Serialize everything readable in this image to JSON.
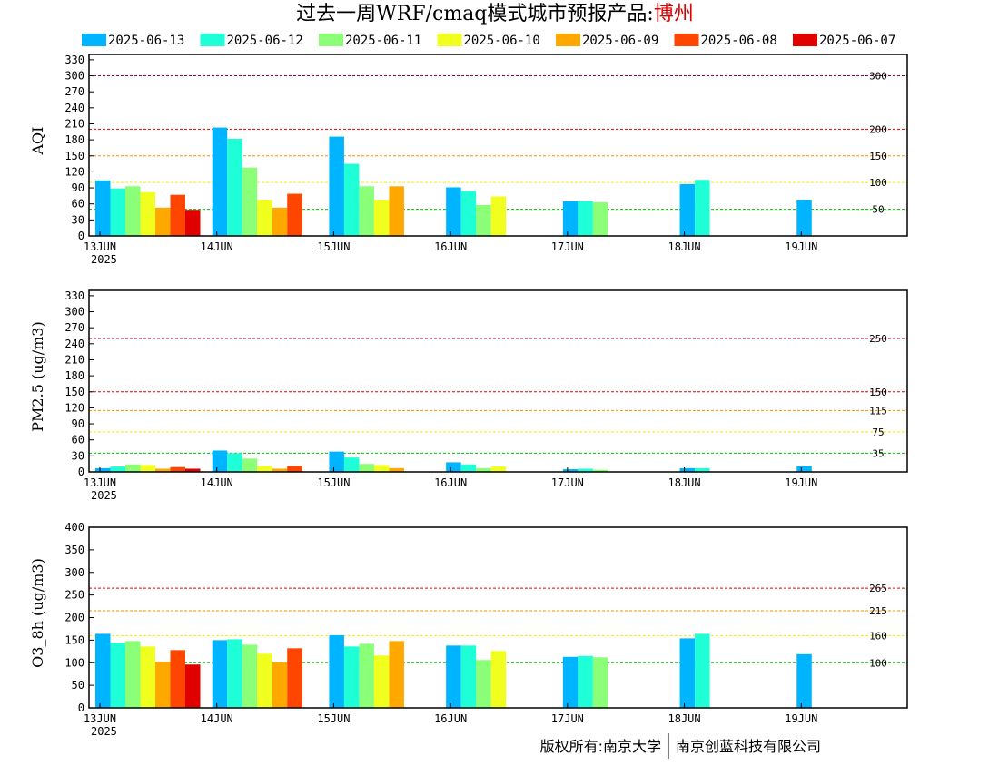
{
  "title": {
    "main": "过去一周WRF/cmaq模式城市预报产品:",
    "city": "博州"
  },
  "footer": {
    "left": "版权所有:南京大学",
    "right": "南京创蓝科技有限公司"
  },
  "colors": {
    "2025-06-13": "#00b4ff",
    "2025-06-12": "#1effd8",
    "2025-06-11": "#8cff78",
    "2025-06-10": "#f0ff1e",
    "2025-06-09": "#ffa800",
    "2025-06-08": "#ff4600",
    "2025-06-07": "#e00000"
  },
  "chart_data": [
    {
      "type": "bar",
      "ylabel": "AQI",
      "categories": [
        "13JUN",
        "14JUN",
        "15JUN",
        "16JUN",
        "17JUN",
        "18JUN",
        "19JUN"
      ],
      "year_label": "2025",
      "ylim": [
        0,
        340
      ],
      "yticks": [
        0,
        30,
        60,
        90,
        120,
        150,
        180,
        210,
        240,
        270,
        300,
        330
      ],
      "legend_position": "top",
      "reference_lines": [
        {
          "value": 300,
          "label": "300",
          "color": "#a0004a"
        },
        {
          "value": 200,
          "label": "200",
          "color": "#e00000"
        },
        {
          "value": 150,
          "label": "150",
          "color": "#ff8c00"
        },
        {
          "value": 100,
          "label": "100",
          "color": "#f0f000"
        },
        {
          "value": 50,
          "label": "50",
          "color": "#00c000"
        }
      ],
      "series": [
        {
          "name": "2025-06-13",
          "values": [
            104,
            203,
            186,
            91,
            65,
            97,
            68
          ]
        },
        {
          "name": "2025-06-12",
          "values": [
            89,
            182,
            135,
            84,
            65,
            105,
            null
          ]
        },
        {
          "name": "2025-06-11",
          "values": [
            93,
            128,
            93,
            58,
            63,
            null,
            null
          ]
        },
        {
          "name": "2025-06-10",
          "values": [
            82,
            68,
            68,
            74,
            null,
            null,
            null
          ]
        },
        {
          "name": "2025-06-09",
          "values": [
            53,
            53,
            93,
            null,
            null,
            null,
            null
          ]
        },
        {
          "name": "2025-06-08",
          "values": [
            77,
            79,
            null,
            null,
            null,
            null,
            null
          ]
        },
        {
          "name": "2025-06-07",
          "values": [
            49,
            null,
            null,
            null,
            null,
            null,
            null
          ]
        }
      ]
    },
    {
      "type": "bar",
      "ylabel": "PM2.5 (ug/m3)",
      "categories": [
        "13JUN",
        "14JUN",
        "15JUN",
        "16JUN",
        "17JUN",
        "18JUN",
        "19JUN"
      ],
      "year_label": "2025",
      "ylim": [
        0,
        340
      ],
      "yticks": [
        0,
        30,
        60,
        90,
        120,
        150,
        180,
        210,
        240,
        270,
        300,
        330
      ],
      "reference_lines": [
        {
          "value": 250,
          "label": "250",
          "color": "#a0004a"
        },
        {
          "value": 150,
          "label": "150",
          "color": "#e00000"
        },
        {
          "value": 115,
          "label": "115",
          "color": "#ff8c00"
        },
        {
          "value": 75,
          "label": "75",
          "color": "#f0f000"
        },
        {
          "value": 35,
          "label": "35",
          "color": "#00c000"
        }
      ],
      "series": [
        {
          "name": "2025-06-13",
          "values": [
            7,
            40,
            38,
            18,
            5,
            7,
            11
          ]
        },
        {
          "name": "2025-06-12",
          "values": [
            10,
            35,
            27,
            14,
            6,
            7,
            null
          ]
        },
        {
          "name": "2025-06-11",
          "values": [
            14,
            25,
            15,
            7,
            4,
            null,
            null
          ]
        },
        {
          "name": "2025-06-10",
          "values": [
            13,
            11,
            13,
            10,
            null,
            null,
            null
          ]
        },
        {
          "name": "2025-06-09",
          "values": [
            6,
            6,
            7,
            null,
            null,
            null,
            null
          ]
        },
        {
          "name": "2025-06-08",
          "values": [
            9,
            11,
            null,
            null,
            null,
            null,
            null
          ]
        },
        {
          "name": "2025-06-07",
          "values": [
            6,
            null,
            null,
            null,
            null,
            null,
            null
          ]
        }
      ]
    },
    {
      "type": "bar",
      "ylabel": "O3_8h (ug/m3)",
      "categories": [
        "13JUN",
        "14JUN",
        "15JUN",
        "16JUN",
        "17JUN",
        "18JUN",
        "19JUN"
      ],
      "year_label": "2025",
      "ylim": [
        0,
        400
      ],
      "yticks": [
        0,
        50,
        100,
        150,
        200,
        250,
        300,
        350,
        400
      ],
      "reference_lines": [
        {
          "value": 265,
          "label": "265",
          "color": "#e00000"
        },
        {
          "value": 215,
          "label": "215",
          "color": "#ff8c00"
        },
        {
          "value": 160,
          "label": "160",
          "color": "#f0f000"
        },
        {
          "value": 100,
          "label": "100",
          "color": "#00c000"
        }
      ],
      "series": [
        {
          "name": "2025-06-13",
          "values": [
            164,
            150,
            161,
            138,
            113,
            154,
            119
          ]
        },
        {
          "name": "2025-06-12",
          "values": [
            144,
            152,
            136,
            138,
            115,
            164,
            null
          ]
        },
        {
          "name": "2025-06-11",
          "values": [
            148,
            140,
            142,
            106,
            112,
            null,
            null
          ]
        },
        {
          "name": "2025-06-10",
          "values": [
            136,
            120,
            116,
            126,
            null,
            null,
            null
          ]
        },
        {
          "name": "2025-06-09",
          "values": [
            102,
            101,
            148,
            null,
            null,
            null,
            null
          ]
        },
        {
          "name": "2025-06-08",
          "values": [
            128,
            132,
            null,
            null,
            null,
            null,
            null
          ]
        },
        {
          "name": "2025-06-07",
          "values": [
            96,
            null,
            null,
            null,
            null,
            null,
            null
          ]
        }
      ]
    }
  ]
}
